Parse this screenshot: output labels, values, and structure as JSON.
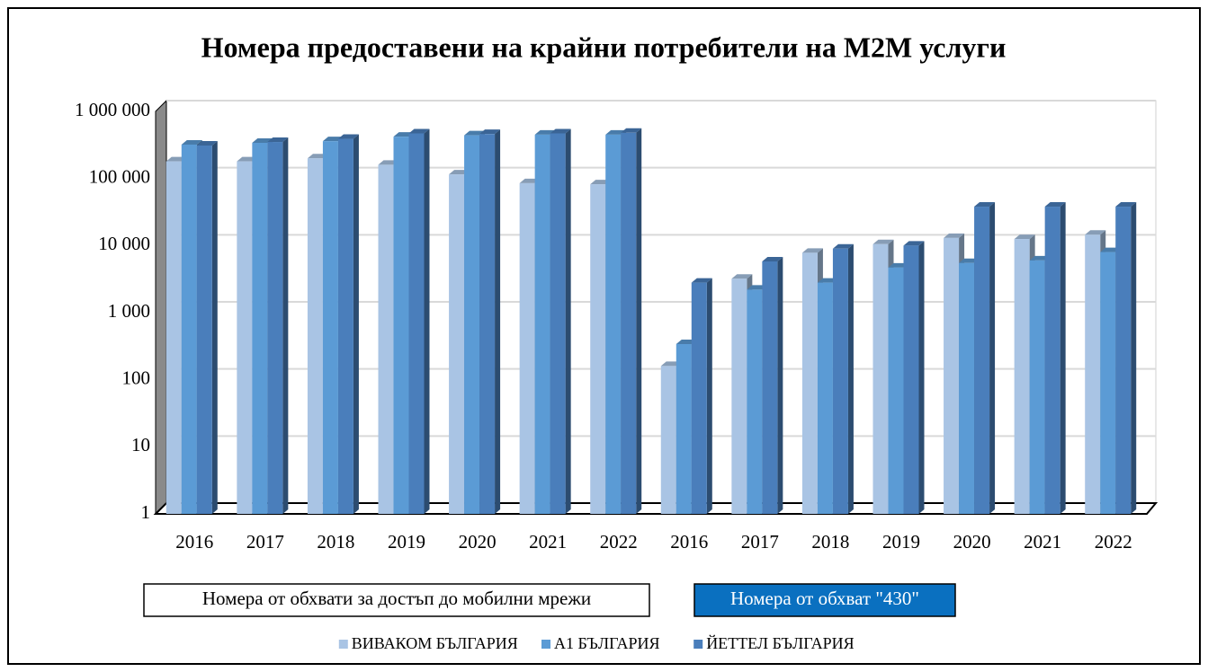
{
  "chart_data": {
    "type": "bar3d",
    "title": "Номера предоставени на крайни потребители на M2M услуги",
    "categories": [
      "2016",
      "2017",
      "2018",
      "2019",
      "2020",
      "2021",
      "2022",
      "2016",
      "2017",
      "2018",
      "2019",
      "2020",
      "2021",
      "2022"
    ],
    "group_labels": [
      "Номера от обхвати за достъп до мобилни мрежи",
      "Номера от обхват \"430\""
    ],
    "series": [
      {
        "name": "ВИВАКОМ БЪЛГАРИЯ",
        "color": "#a9c4e4",
        "values": [
          180000,
          180000,
          200000,
          160000,
          115000,
          85000,
          82000,
          160,
          3200,
          7800,
          10500,
          13000,
          12500,
          14500
        ]
      },
      {
        "name": "А1 БЪЛГАРИЯ",
        "color": "#5b9bd5",
        "values": [
          320000,
          340000,
          360000,
          420000,
          440000,
          450000,
          450000,
          340,
          2200,
          2800,
          4700,
          5500,
          6000,
          8000
        ]
      },
      {
        "name": "ЙЕТТЕЛ БЪЛГАРИЯ",
        "color": "#4a7ebb",
        "values": [
          310000,
          350000,
          390000,
          470000,
          460000,
          470000,
          480000,
          2800,
          5800,
          9000,
          10000,
          38000,
          38000,
          38000
        ]
      }
    ],
    "log_scale": true,
    "ylim": [
      1,
      1000000
    ],
    "yticks": [
      1,
      10,
      100,
      {
        "value": 1000,
        "label": "1 000"
      },
      {
        "value": 10000,
        "label": "10 000"
      },
      {
        "value": 100000,
        "label": "100 000"
      },
      {
        "value": 1000000,
        "label": "1 000 000"
      }
    ],
    "grid": true,
    "legend": "bottom"
  }
}
